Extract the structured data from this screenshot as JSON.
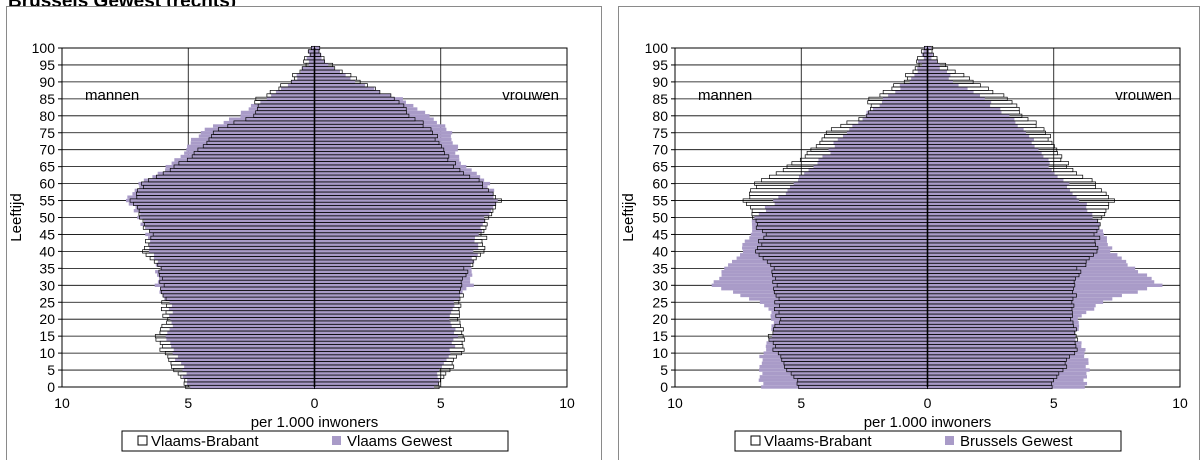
{
  "page_heading": "Brussels Gewest (rechts)",
  "chart_data": [
    {
      "type": "population-pyramid",
      "ylabel": "Leeftijd",
      "xlabel": "per 1.000 inwoners",
      "left_label": "mannen",
      "right_label": "vrouwen",
      "x_ticks": [
        "10",
        "5",
        "0",
        "5",
        "10"
      ],
      "y_ticks": [
        "0",
        "5",
        "10",
        "15",
        "20",
        "25",
        "30",
        "35",
        "40",
        "45",
        "50",
        "55",
        "60",
        "65",
        "70",
        "75",
        "80",
        "85",
        "90",
        "95",
        "100"
      ],
      "xlim": [
        -10,
        10
      ],
      "ylim": [
        0,
        100
      ],
      "grid": true,
      "legend_position": "bottom",
      "legend": [
        {
          "label": "Vlaams-Brabant",
          "style": "outline"
        },
        {
          "label": "Vlaams Gewest",
          "style": "fill",
          "color": "#a99bc8"
        }
      ],
      "series": [
        {
          "name": "Vlaams-Brabant",
          "style": "outline",
          "sex": "male",
          "age_knots": [
            0,
            5,
            10,
            15,
            20,
            25,
            30,
            35,
            40,
            45,
            50,
            55,
            60,
            65,
            70,
            75,
            80,
            85,
            90,
            95,
            100
          ],
          "values": [
            5.1,
            5.5,
            6.0,
            6.3,
            5.9,
            6.0,
            6.0,
            6.1,
            6.8,
            6.5,
            6.9,
            7.2,
            6.8,
            5.5,
            4.5,
            4.0,
            2.5,
            2.2,
            1.0,
            0.4,
            0.1
          ]
        },
        {
          "name": "Vlaams-Brabant",
          "style": "outline",
          "sex": "female",
          "age_knots": [
            0,
            5,
            10,
            15,
            20,
            25,
            30,
            35,
            40,
            45,
            50,
            55,
            60,
            65,
            70,
            75,
            80,
            85,
            90,
            95,
            100
          ],
          "values": [
            4.9,
            5.3,
            5.8,
            6.0,
            5.7,
            5.8,
            5.8,
            6.0,
            6.8,
            6.7,
            6.9,
            7.3,
            6.6,
            5.6,
            5.0,
            4.8,
            3.8,
            3.2,
            1.8,
            0.6,
            0.1
          ]
        },
        {
          "name": "Vlaams Gewest",
          "style": "fill",
          "sex": "male",
          "age_knots": [
            0,
            5,
            10,
            15,
            20,
            25,
            30,
            35,
            40,
            45,
            50,
            55,
            60,
            65,
            70,
            75,
            80,
            85,
            90,
            95,
            100
          ],
          "values": [
            5.0,
            5.2,
            5.6,
            5.8,
            5.6,
            5.8,
            6.3,
            6.2,
            6.5,
            6.6,
            6.9,
            7.4,
            6.9,
            5.8,
            5.1,
            4.6,
            3.0,
            2.0,
            0.9,
            0.3,
            0.1
          ]
        },
        {
          "name": "Vlaams Gewest",
          "style": "fill",
          "sex": "female",
          "age_knots": [
            0,
            5,
            10,
            15,
            20,
            25,
            30,
            35,
            40,
            45,
            50,
            55,
            60,
            65,
            70,
            75,
            80,
            85,
            90,
            95,
            100
          ],
          "values": [
            4.8,
            5.0,
            5.4,
            5.6,
            5.4,
            5.6,
            6.2,
            6.2,
            6.4,
            6.5,
            6.8,
            7.2,
            6.9,
            6.0,
            5.6,
            5.5,
            4.5,
            3.4,
            1.6,
            0.5,
            0.1
          ]
        }
      ]
    },
    {
      "type": "population-pyramid",
      "ylabel": "Leeftijd",
      "xlabel": "per 1.000 inwoners",
      "left_label": "mannen",
      "right_label": "vrouwen",
      "x_ticks": [
        "10",
        "5",
        "0",
        "5",
        "10"
      ],
      "y_ticks": [
        "0",
        "5",
        "10",
        "15",
        "20",
        "25",
        "30",
        "35",
        "40",
        "45",
        "50",
        "55",
        "60",
        "65",
        "70",
        "75",
        "80",
        "85",
        "90",
        "95",
        "100"
      ],
      "xlim": [
        -10,
        10
      ],
      "ylim": [
        0,
        100
      ],
      "grid": true,
      "legend_position": "bottom",
      "legend": [
        {
          "label": "Vlaams-Brabant",
          "style": "outline"
        },
        {
          "label": "Brussels Gewest",
          "style": "fill",
          "color": "#a99bc8"
        }
      ],
      "series": [
        {
          "name": "Vlaams-Brabant",
          "style": "outline",
          "sex": "male",
          "age_knots": [
            0,
            5,
            10,
            15,
            20,
            25,
            30,
            35,
            40,
            45,
            50,
            55,
            60,
            65,
            70,
            75,
            80,
            85,
            90,
            95,
            100
          ],
          "values": [
            5.1,
            5.5,
            6.0,
            6.3,
            5.9,
            6.0,
            6.0,
            6.1,
            6.8,
            6.5,
            6.9,
            7.2,
            6.8,
            5.5,
            4.5,
            4.0,
            2.5,
            2.2,
            1.0,
            0.4,
            0.1
          ]
        },
        {
          "name": "Vlaams-Brabant",
          "style": "outline",
          "sex": "female",
          "age_knots": [
            0,
            5,
            10,
            15,
            20,
            25,
            30,
            35,
            40,
            45,
            50,
            55,
            60,
            65,
            70,
            75,
            80,
            85,
            90,
            95,
            100
          ],
          "values": [
            4.9,
            5.3,
            5.8,
            6.0,
            5.7,
            5.8,
            5.8,
            6.0,
            6.8,
            6.7,
            6.9,
            7.3,
            6.6,
            5.6,
            5.0,
            4.8,
            3.8,
            3.2,
            1.8,
            0.6,
            0.1
          ]
        },
        {
          "name": "Brussels Gewest",
          "style": "fill",
          "sex": "male",
          "age_knots": [
            0,
            5,
            10,
            15,
            20,
            25,
            30,
            35,
            40,
            45,
            50,
            55,
            60,
            65,
            70,
            75,
            80,
            85,
            90,
            95,
            100
          ],
          "values": [
            6.5,
            6.7,
            6.5,
            6.2,
            6.1,
            6.6,
            8.6,
            8.0,
            7.3,
            7.1,
            6.8,
            6.0,
            5.3,
            4.5,
            3.8,
            3.3,
            2.5,
            1.7,
            0.8,
            0.3,
            0.1
          ]
        },
        {
          "name": "Brussels Gewest",
          "style": "fill",
          "sex": "female",
          "age_knots": [
            0,
            5,
            10,
            15,
            20,
            25,
            30,
            35,
            40,
            45,
            50,
            55,
            60,
            65,
            70,
            75,
            80,
            85,
            90,
            95,
            100
          ],
          "values": [
            6.2,
            6.4,
            6.2,
            5.9,
            6.0,
            6.9,
            9.2,
            8.2,
            7.3,
            7.0,
            6.6,
            6.1,
            5.5,
            4.9,
            4.4,
            4.0,
            3.2,
            2.2,
            1.1,
            0.4,
            0.1
          ]
        }
      ]
    }
  ]
}
